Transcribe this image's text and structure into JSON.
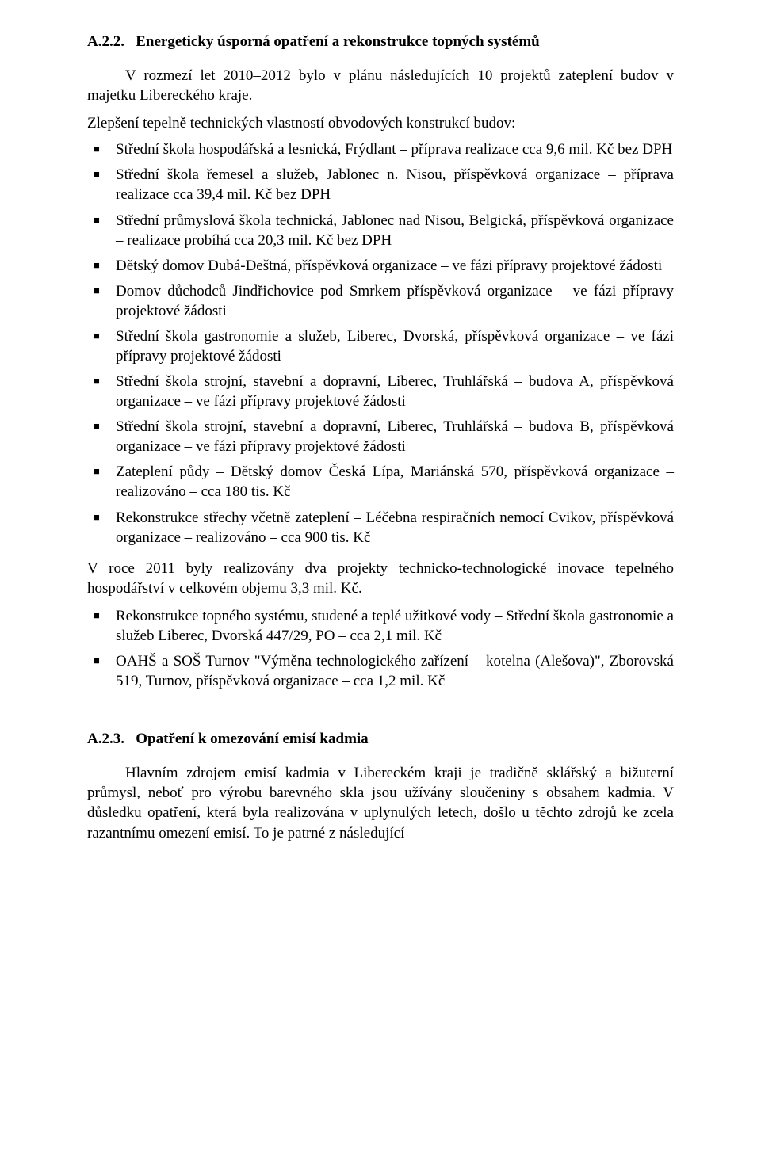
{
  "section_a22": {
    "number": "A.2.2.",
    "title": "Energeticky úsporná opatření a rekonstrukce topných systémů",
    "intro": "V rozmezí let 2010–2012 bylo v plánu následujících 10 projektů zateplení budov v majetku Libereckého kraje.",
    "sublead": "Zlepšení tepelně technických vlastností obvodových konstrukcí budov:",
    "list1": [
      "Střední škola hospodářská a lesnická, Frýdlant – příprava realizace cca 9,6 mil. Kč bez DPH",
      "Střední škola řemesel a služeb, Jablonec n. Nisou, příspěvková organizace – příprava realizace cca 39,4 mil. Kč bez DPH",
      "Střední průmyslová škola technická, Jablonec nad Nisou, Belgická, příspěvková organizace – realizace probíhá cca 20,3 mil. Kč bez DPH",
      "Dětský domov Dubá-Deštná, příspěvková organizace – ve fázi přípravy projektové žádosti",
      "Domov důchodců Jindřichovice pod Smrkem příspěvková organizace – ve fázi přípravy projektové žádosti",
      "Střední škola gastronomie a služeb, Liberec, Dvorská, příspěvková organizace – ve fázi přípravy projektové žádosti",
      "Střední škola strojní, stavební a dopravní, Liberec, Truhlářská – budova A, příspěvková organizace – ve fázi přípravy projektové žádosti",
      "Střední škola strojní, stavební a dopravní, Liberec, Truhlářská – budova B, příspěvková organizace – ve fázi přípravy projektové žádosti",
      "Zateplení půdy – Dětský domov Česká Lípa, Mariánská 570, příspěvková organizace – realizováno – cca 180 tis. Kč",
      "Rekonstrukce střechy včetně zateplení – Léčebna respiračních nemocí Cvikov, příspěvková organizace – realizováno – cca 900 tis. Kč"
    ],
    "mid": "V roce 2011 byly realizovány dva projekty technicko-technologické inovace tepelného hospodářství v celkovém objemu 3,3 mil. Kč.",
    "list2": [
      "Rekonstrukce topného systému, studené a teplé užitkové vody – Střední škola gastronomie a služeb Liberec, Dvorská 447/29, PO – cca 2,1 mil. Kč",
      "OAHŠ a SOŠ Turnov \"Výměna technologického zařízení – kotelna (Alešova)\", Zborovská 519, Turnov, příspěvková organizace – cca 1,2 mil. Kč"
    ]
  },
  "section_a23": {
    "number": "A.2.3.",
    "title": "Opatření k omezování emisí kadmia",
    "body": "Hlavním zdrojem emisí kadmia v Libereckém kraji je tradičně sklářský a bižuterní průmysl, neboť pro výrobu barevného skla jsou užívány sloučeniny s obsahem kadmia. V důsledku opatření, která byla realizována v uplynulých letech, došlo u těchto zdrojů ke zcela razantnímu omezení emisí. To je patrné z následující"
  }
}
